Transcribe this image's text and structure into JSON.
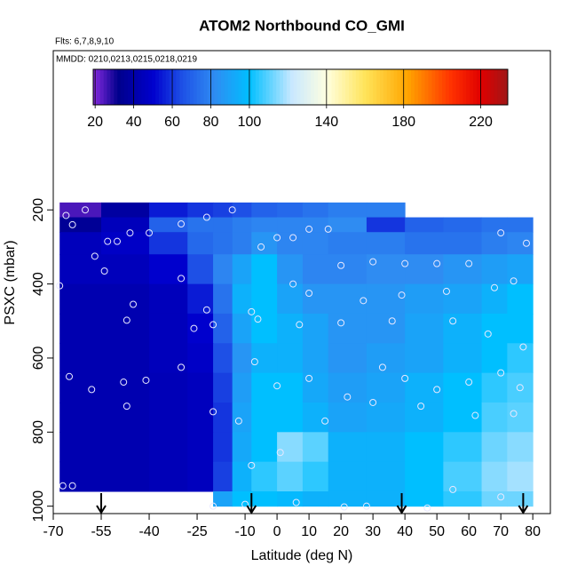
{
  "chart_data": {
    "type": "heatmap",
    "title": "ATOM2 Northbound CO_GMI",
    "subtitle": "Flts: 6,7,8,9,10",
    "annotation": "MMDD: 0210,0213,0215,0218,0219",
    "xlabel": "Latitude (deg N)",
    "ylabel": "PSXC (mbar)",
    "xlim": [
      -70,
      85.5
    ],
    "ylim": [
      1020,
      -230
    ],
    "xticks": [
      -70,
      -55,
      -40,
      -25,
      -10,
      0,
      10,
      20,
      30,
      40,
      50,
      60,
      70,
      80
    ],
    "yticks": [
      200,
      400,
      600,
      800,
      1000
    ],
    "lat_edges": [
      -68,
      -55,
      -40,
      -28,
      -20,
      -14,
      -8,
      0,
      8,
      16,
      28,
      40,
      52,
      64,
      72,
      80
    ],
    "pressure_edges": [
      180,
      220,
      260,
      320,
      400,
      480,
      560,
      640,
      720,
      800,
      880,
      960,
      1000
    ],
    "values": [
      [
        25,
        38,
        55,
        60,
        62,
        65,
        70,
        72,
        75,
        78,
        78,
        null,
        null,
        null,
        null
      ],
      [
        35,
        45,
        70,
        75,
        75,
        78,
        80,
        80,
        80,
        82,
        60,
        70,
        72,
        75,
        75
      ],
      [
        45,
        48,
        60,
        72,
        75,
        78,
        85,
        80,
        80,
        78,
        78,
        75,
        75,
        78,
        80
      ],
      [
        45,
        45,
        50,
        65,
        80,
        90,
        100,
        85,
        80,
        80,
        82,
        82,
        85,
        88,
        90
      ],
      [
        42,
        42,
        45,
        55,
        75,
        95,
        100,
        90,
        85,
        85,
        85,
        88,
        90,
        95,
        100
      ],
      [
        42,
        42,
        45,
        50,
        70,
        90,
        100,
        95,
        90,
        85,
        85,
        90,
        95,
        100,
        100
      ],
      [
        42,
        42,
        45,
        48,
        65,
        85,
        95,
        95,
        90,
        85,
        88,
        90,
        95,
        100,
        105
      ],
      [
        42,
        42,
        44,
        46,
        62,
        88,
        100,
        100,
        92,
        88,
        90,
        95,
        100,
        105,
        108
      ],
      [
        42,
        42,
        44,
        46,
        60,
        90,
        100,
        100,
        95,
        90,
        92,
        95,
        100,
        108,
        110
      ],
      [
        42,
        42,
        44,
        46,
        60,
        92,
        100,
        115,
        110,
        95,
        95,
        100,
        105,
        112,
        115
      ],
      [
        42,
        42,
        44,
        46,
        62,
        95,
        105,
        110,
        105,
        95,
        95,
        100,
        108,
        115,
        118
      ],
      [
        null,
        null,
        null,
        null,
        90,
        100,
        100,
        98,
        95,
        95,
        95,
        100,
        105,
        112,
        112
      ]
    ],
    "colorbar_lim": [
      19,
      234
    ],
    "colorbar_ticks": [
      20,
      40,
      60,
      80,
      100,
      140,
      180,
      220
    ],
    "colorscale": [
      {
        "value": 19,
        "color": "#8a2be2"
      },
      {
        "value": 32,
        "color": "#00008b"
      },
      {
        "value": 50,
        "color": "#0000cd"
      },
      {
        "value": 65,
        "color": "#1e50e6"
      },
      {
        "value": 82,
        "color": "#2f8cf2"
      },
      {
        "value": 100,
        "color": "#00bfff"
      },
      {
        "value": 122,
        "color": "#c8e8ff"
      },
      {
        "value": 140,
        "color": "#ffffe0"
      },
      {
        "value": 160,
        "color": "#ffe45a"
      },
      {
        "value": 182,
        "color": "#ffa500"
      },
      {
        "value": 205,
        "color": "#ff3000"
      },
      {
        "value": 220,
        "color": "#e00000"
      },
      {
        "value": 234,
        "color": "#a01818"
      }
    ],
    "observations": {
      "lat": [
        -66,
        -60,
        -64,
        -57,
        -53,
        -50,
        -46,
        -40,
        -30,
        -22,
        -14,
        -5,
        0,
        5,
        10,
        16,
        20,
        30,
        40,
        50,
        60,
        70,
        78,
        -68,
        -54,
        -45,
        -30,
        -22,
        -8,
        5,
        10,
        27,
        39,
        53,
        68,
        74,
        -47,
        -26,
        -20,
        -6,
        7,
        20,
        36,
        55,
        66,
        77,
        -65,
        -58,
        -48,
        -41,
        -30,
        -7,
        0,
        10,
        22,
        33,
        40,
        50,
        60,
        70,
        76,
        -47,
        -20,
        -12,
        15,
        30,
        45,
        62,
        74,
        -8,
        1,
        55,
        70,
        -20,
        -10,
        6,
        21,
        28,
        47,
        -67,
        -64
      ],
      "pressure": [
        215,
        200,
        240,
        325,
        285,
        285,
        262,
        262,
        238,
        220,
        200,
        300,
        275,
        275,
        252,
        252,
        350,
        340,
        345,
        345,
        345,
        262,
        290,
        405,
        365,
        455,
        385,
        470,
        475,
        400,
        425,
        445,
        430,
        420,
        410,
        392,
        498,
        520,
        510,
        495,
        510,
        505,
        500,
        500,
        535,
        570,
        650,
        685,
        665,
        660,
        625,
        610,
        675,
        655,
        705,
        625,
        655,
        685,
        665,
        640,
        680,
        730,
        745,
        770,
        770,
        720,
        730,
        755,
        750,
        890,
        855,
        955,
        975,
        1000,
        995,
        990,
        1002,
        1000,
        1005,
        945,
        945
      ]
    },
    "flight_arrows": [
      -55,
      -8,
      39,
      77
    ]
  }
}
